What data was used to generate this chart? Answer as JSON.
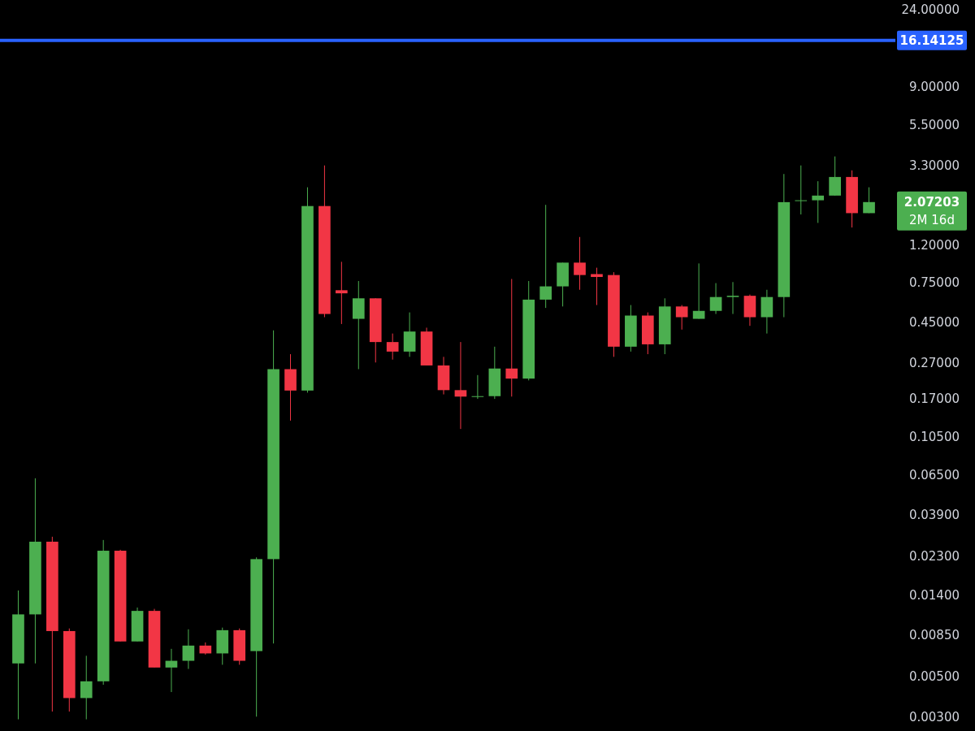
{
  "chart_data": {
    "type": "candlestick",
    "log": "y",
    "grid": false,
    "categories": [
      null,
      null,
      null,
      null,
      null,
      null,
      null,
      null,
      null,
      null,
      null,
      null,
      null,
      null,
      null,
      null,
      null,
      null,
      null,
      null,
      null,
      null,
      null,
      null,
      null,
      null,
      null,
      null,
      null,
      null,
      null,
      null,
      null,
      null,
      null,
      null,
      null,
      null,
      null,
      null,
      null,
      null,
      null,
      null,
      null,
      null,
      null,
      null,
      null,
      null,
      null
    ],
    "ohlc": [
      [
        0.0059,
        0.0149,
        0.0029,
        0.011
      ],
      [
        0.011,
        0.062,
        0.0059,
        0.0277
      ],
      [
        0.0277,
        0.0295,
        0.0032,
        0.0089
      ],
      [
        0.0089,
        0.0092,
        0.0032,
        0.0038
      ],
      [
        0.0038,
        0.0065,
        0.0029,
        0.0047
      ],
      [
        0.0047,
        0.0283,
        0.0045,
        0.0247
      ],
      [
        0.0247,
        0.025,
        0.0078,
        0.0078
      ],
      [
        0.0078,
        0.012,
        0.0078,
        0.0115
      ],
      [
        0.0115,
        0.0118,
        0.0056,
        0.0056
      ],
      [
        0.0056,
        0.0071,
        0.0041,
        0.0061
      ],
      [
        0.0061,
        0.0091,
        0.0055,
        0.0074
      ],
      [
        0.0074,
        0.0077,
        0.0066,
        0.0067
      ],
      [
        0.0067,
        0.0093,
        0.0058,
        0.009
      ],
      [
        0.009,
        0.0092,
        0.0058,
        0.0061
      ],
      [
        0.0069,
        0.0227,
        0.003,
        0.0222
      ],
      [
        0.0222,
        0.406,
        0.0076,
        0.248
      ],
      [
        0.248,
        0.3,
        0.129,
        0.189
      ],
      [
        0.189,
        2.5,
        0.184,
        1.97
      ],
      [
        1.97,
        3.3,
        0.48,
        0.5
      ],
      [
        0.676,
        0.97,
        0.44,
        0.65
      ],
      [
        0.47,
        0.76,
        0.248,
        0.61
      ],
      [
        0.61,
        0.61,
        0.27,
        0.35
      ],
      [
        0.35,
        0.39,
        0.28,
        0.31
      ],
      [
        0.31,
        0.51,
        0.29,
        0.4
      ],
      [
        0.4,
        0.42,
        0.26,
        0.26
      ],
      [
        0.26,
        0.29,
        0.18,
        0.19
      ],
      [
        0.19,
        0.35,
        0.116,
        0.175
      ],
      [
        0.175,
        0.23,
        0.17,
        0.176
      ],
      [
        0.176,
        0.33,
        0.17,
        0.25
      ],
      [
        0.25,
        0.78,
        0.175,
        0.22
      ],
      [
        0.22,
        0.76,
        0.215,
        0.6
      ],
      [
        0.6,
        2.0,
        0.54,
        0.71
      ],
      [
        0.71,
        0.96,
        0.55,
        0.96
      ],
      [
        0.96,
        1.33,
        0.68,
        0.82
      ],
      [
        0.83,
        0.9,
        0.56,
        0.8
      ],
      [
        0.82,
        0.85,
        0.29,
        0.33
      ],
      [
        0.33,
        0.56,
        0.31,
        0.49
      ],
      [
        0.49,
        0.51,
        0.3,
        0.34
      ],
      [
        0.34,
        0.61,
        0.3,
        0.55
      ],
      [
        0.55,
        0.56,
        0.41,
        0.48
      ],
      [
        0.47,
        0.95,
        0.47,
        0.52
      ],
      [
        0.52,
        0.74,
        0.5,
        0.62
      ],
      [
        0.62,
        0.75,
        0.5,
        0.63
      ],
      [
        0.63,
        0.64,
        0.43,
        0.48
      ],
      [
        0.48,
        0.68,
        0.39,
        0.62
      ],
      [
        0.62,
        2.96,
        0.48,
        2.07
      ],
      [
        2.1,
        3.3,
        1.77,
        2.12
      ],
      [
        2.12,
        2.7,
        1.59,
        2.25
      ],
      [
        2.25,
        3.7,
        2.25,
        2.85
      ],
      [
        2.85,
        3.1,
        1.5,
        1.8
      ],
      [
        1.8,
        2.5,
        1.8,
        2.07203
      ]
    ],
    "colors": [
      "#4caf50",
      "#4caf50",
      "#f23645",
      "#f23645",
      "#4caf50",
      "#4caf50",
      "#f23645",
      "#4caf50",
      "#f23645",
      "#4caf50",
      "#4caf50",
      "#f23645",
      "#4caf50",
      "#f23645",
      "#4caf50",
      "#4caf50",
      "#f23645",
      "#4caf50",
      "#f23645",
      "#f23645",
      "#4caf50",
      "#f23645",
      "#f23645",
      "#4caf50",
      "#f23645",
      "#f23645",
      "#f23645",
      "#4caf50",
      "#4caf50",
      "#f23645",
      "#4caf50",
      "#4caf50",
      "#4caf50",
      "#f23645",
      "#f23645",
      "#f23645",
      "#4caf50",
      "#f23645",
      "#4caf50",
      "#f23645",
      "#4caf50",
      "#4caf50",
      "#4caf50",
      "#f23645",
      "#4caf50",
      "#4caf50",
      "#4caf50",
      "#4caf50",
      "#4caf50",
      "#f23645",
      "#4caf50"
    ],
    "ylim": [
      0.0025,
      27
    ],
    "yticks": [
      {
        "value": 24,
        "label": "24.00000"
      },
      {
        "value": 9,
        "label": "9.00000"
      },
      {
        "value": 5.5,
        "label": "5.50000"
      },
      {
        "value": 3.3,
        "label": "3.30000"
      },
      {
        "value": 1.2,
        "label": "1.20000"
      },
      {
        "value": 0.75,
        "label": "0.75000"
      },
      {
        "value": 0.45,
        "label": "0.45000"
      },
      {
        "value": 0.27,
        "label": "0.27000"
      },
      {
        "value": 0.17,
        "label": "0.17000"
      },
      {
        "value": 0.105,
        "label": "0.10500"
      },
      {
        "value": 0.065,
        "label": "0.06500"
      },
      {
        "value": 0.039,
        "label": "0.03900"
      },
      {
        "value": 0.023,
        "label": "0.02300"
      },
      {
        "value": 0.014,
        "label": "0.01400"
      },
      {
        "value": 0.0085,
        "label": "0.00850"
      },
      {
        "value": 0.005,
        "label": "0.00500"
      },
      {
        "value": 0.003,
        "label": "0.00300"
      }
    ],
    "ref_lines": [
      {
        "axis": "y",
        "value": 16.14125,
        "label": "16.14125",
        "color": "#2962ff"
      }
    ],
    "annotations": [
      "2.07203",
      "2M 16d"
    ]
  }
}
